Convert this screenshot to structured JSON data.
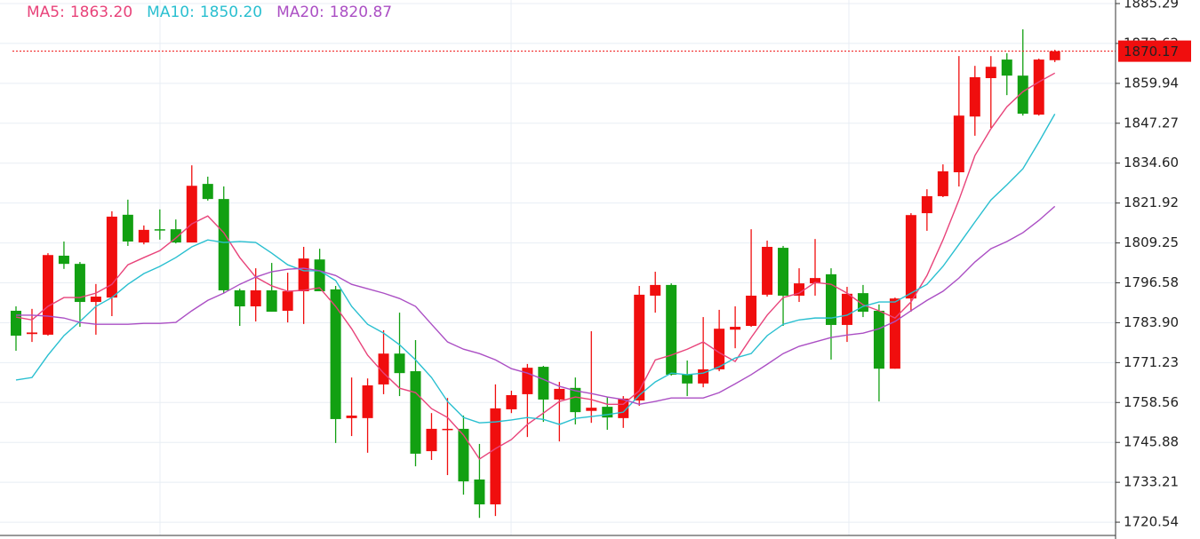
{
  "chart_data": {
    "type": "candlestick",
    "ylim": [
      1715.2,
      1886.42
    ],
    "yticks": [
      1885.29,
      1872.62,
      1859.94,
      1847.27,
      {
        "value": 1834.6,
        "label": "1834.60"
      },
      1821.92,
      1809.25,
      1796.58,
      {
        "value": 1783.9,
        "label": "1783.90"
      },
      1771.23,
      1758.56,
      1745.88,
      1733.21,
      1720.54
    ],
    "grid": true,
    "up_color": "#f00e0e",
    "down_color": "#12a012",
    "open": [
      1787.7,
      1780.3,
      1780.1,
      1805.2,
      1802.6,
      1790.5,
      1791.9,
      1818.2,
      1809.4,
      1813.6,
      1813.6,
      1809.4,
      1828.0,
      1823.2,
      1794.2,
      1789.1,
      1794.2,
      1787.7,
      1793.9,
      1804.0,
      1794.5,
      1753.6,
      1753.6,
      1764.3,
      1774.1,
      1768.5,
      1743.1,
      1749.9,
      1750.2,
      1734.1,
      1726.2,
      1756.4,
      1761.2,
      1769.9,
      1759.5,
      1763.2,
      1755.9,
      1757.2,
      1753.6,
      1759.2,
      1792.5,
      1795.9,
      1767.4,
      1764.6,
      1769.1,
      1781.7,
      1782.9,
      1792.8,
      1807.7,
      1792.5,
      1796.4,
      1799.3,
      1783.2,
      1793.3,
      1787.7,
      1769.3,
      1791.6,
      1818.7,
      1824.1,
      1831.7,
      1849.4,
      1861.6,
      1867.5,
      1862.4,
      1850.0,
      1867.3
    ],
    "high": [
      1789.1,
      1788.3,
      1806.0,
      1809.7,
      1803.2,
      1796.2,
      1819.3,
      1823.0,
      1814.8,
      1819.9,
      1816.7,
      1833.9,
      1830.3,
      1827.2,
      1794.7,
      1801.2,
      1802.9,
      1799.8,
      1808.0,
      1807.4,
      1795.6,
      1766.5,
      1766.2,
      1781.5,
      1787.1,
      1778.4,
      1755.2,
      1760.0,
      1754.4,
      1745.4,
      1764.3,
      1762.3,
      1770.8,
      1770.2,
      1765.1,
      1766.5,
      1781.2,
      1760.3,
      1760.6,
      1795.6,
      1800.1,
      1796.4,
      1771.9,
      1785.7,
      1788.0,
      1789.1,
      1813.6,
      1810.0,
      1808.3,
      1801.2,
      1810.5,
      1801.2,
      1795.3,
      1795.9,
      1789.7,
      1791.9,
      1818.7,
      1826.3,
      1834.2,
      1868.6,
      1865.5,
      1868.6,
      1869.5,
      1877.1,
      1867.8,
      1870.6
    ],
    "low": [
      1775.0,
      1777.8,
      1779.8,
      1801.0,
      1782.6,
      1780.1,
      1786.0,
      1808.3,
      1808.8,
      1810.3,
      1809.1,
      1809.4,
      1822.7,
      1793.3,
      1782.9,
      1784.3,
      1787.4,
      1784.0,
      1783.5,
      1793.9,
      1745.7,
      1747.9,
      1742.6,
      1761.2,
      1760.6,
      1738.3,
      1740.3,
      1735.5,
      1729.3,
      1721.9,
      1722.5,
      1755.2,
      1747.6,
      1752.4,
      1746.2,
      1751.6,
      1752.1,
      1749.9,
      1750.5,
      1757.5,
      1787.1,
      1767.1,
      1760.6,
      1763.4,
      1768.5,
      1775.8,
      1782.6,
      1792.2,
      1782.9,
      1790.5,
      1792.5,
      1772.2,
      1777.8,
      1785.7,
      1758.9,
      1769.3,
      1787.4,
      1813.1,
      1823.8,
      1827.2,
      1843.3,
      1845.8,
      1856.2,
      1849.7,
      1849.7,
      1866.7
    ],
    "close": [
      1779.8,
      1780.8,
      1805.4,
      1802.6,
      1790.5,
      1792.2,
      1817.6,
      1809.7,
      1813.4,
      1813.2,
      1809.4,
      1827.4,
      1823.2,
      1794.2,
      1789.1,
      1794.2,
      1787.4,
      1793.9,
      1804.3,
      1793.9,
      1753.3,
      1754.4,
      1764.0,
      1774.1,
      1767.9,
      1742.3,
      1750.2,
      1750.2,
      1733.5,
      1726.2,
      1756.7,
      1760.9,
      1769.6,
      1759.5,
      1762.9,
      1755.5,
      1756.9,
      1753.8,
      1759.8,
      1792.8,
      1795.9,
      1767.4,
      1764.6,
      1769.1,
      1782.0,
      1782.6,
      1792.5,
      1808.0,
      1792.5,
      1796.4,
      1798.1,
      1783.2,
      1793.1,
      1787.4,
      1769.3,
      1791.6,
      1818.1,
      1824.1,
      1832.0,
      1849.7,
      1861.9,
      1865.2,
      1862.4,
      1850.3,
      1867.5,
      1870.17
    ],
    "last_price": 1870.17,
    "series": [
      {
        "name": "MA5:",
        "color": "#e8437a",
        "current": {
          "value": 1863.2,
          "label": "1863.20"
        },
        "values": [
          1785.7,
          1784.8,
          1789.1,
          1791.9,
          1791.9,
          1793.3,
          1796.1,
          1802.3,
          1804.6,
          1806.8,
          1810.8,
          1815.3,
          1817.8,
          1812.5,
          1804.6,
          1798.4,
          1795.6,
          1793.9,
          1794.2,
          1795.0,
          1789.1,
          1782.0,
          1773.6,
          1767.9,
          1763.1,
          1761.7,
          1756.6,
          1753.8,
          1748.2,
          1740.6,
          1743.9,
          1746.8,
          1751.6,
          1755.2,
          1758.9,
          1760.3,
          1759.5,
          1758.0,
          1758.0,
          1762.3,
          1772.1,
          1773.6,
          1775.5,
          1777.8,
          1774.4,
          1771.6,
          1779.2,
          1786.3,
          1791.9,
          1793.3,
          1796.7,
          1796.1,
          1793.3,
          1789.6,
          1787.7,
          1785.4,
          1790.5,
          1798.9,
          1810.2,
          1822.9,
          1837.0,
          1845.5,
          1852.5,
          1857.3,
          1860.4,
          1863.2
        ]
      },
      {
        "name": "MA10:",
        "color": "#29bfd0",
        "current": {
          "value": 1850.2,
          "label": "1850.20"
        },
        "values": [
          1765.7,
          1766.5,
          1773.6,
          1779.8,
          1784.3,
          1789.1,
          1791.9,
          1796.1,
          1799.5,
          1801.8,
          1804.6,
          1808.0,
          1810.2,
          1809.4,
          1809.7,
          1809.4,
          1806.0,
          1802.3,
          1800.4,
          1800.4,
          1797.3,
          1789.1,
          1783.4,
          1780.6,
          1776.9,
          1772.1,
          1766.5,
          1758.9,
          1753.8,
          1752.1,
          1752.4,
          1753.0,
          1753.8,
          1753.2,
          1751.6,
          1753.5,
          1754.1,
          1754.7,
          1755.5,
          1760.9,
          1765.1,
          1767.9,
          1767.4,
          1767.9,
          1769.9,
          1772.7,
          1774.1,
          1779.8,
          1783.4,
          1784.8,
          1785.4,
          1785.4,
          1786.3,
          1789.1,
          1790.5,
          1790.5,
          1793.3,
          1796.1,
          1801.8,
          1808.8,
          1815.9,
          1822.9,
          1827.7,
          1832.8,
          1841.3,
          1850.2
        ]
      },
      {
        "name": "MA20:",
        "color": "#ab4fc4",
        "current": {
          "value": 1820.87,
          "label": "1820.87"
        },
        "values": [
          1786.3,
          1786.3,
          1786.0,
          1785.4,
          1784.0,
          1783.4,
          1783.4,
          1783.4,
          1783.7,
          1783.7,
          1784.0,
          1787.7,
          1791.0,
          1793.3,
          1796.1,
          1798.4,
          1800.1,
          1800.9,
          1801.2,
          1800.4,
          1798.9,
          1796.1,
          1794.7,
          1793.3,
          1791.6,
          1789.1,
          1783.4,
          1777.8,
          1775.5,
          1774.1,
          1772.1,
          1769.3,
          1767.9,
          1765.9,
          1763.7,
          1762.3,
          1761.4,
          1760.3,
          1759.5,
          1758.0,
          1758.9,
          1760.0,
          1760.0,
          1760.0,
          1761.7,
          1764.5,
          1767.4,
          1770.7,
          1774.1,
          1776.4,
          1777.8,
          1779.2,
          1780.0,
          1780.6,
          1782.0,
          1784.3,
          1787.7,
          1791.0,
          1793.9,
          1798.1,
          1803.2,
          1807.4,
          1809.7,
          1812.5,
          1816.4,
          1820.87
        ]
      }
    ]
  }
}
